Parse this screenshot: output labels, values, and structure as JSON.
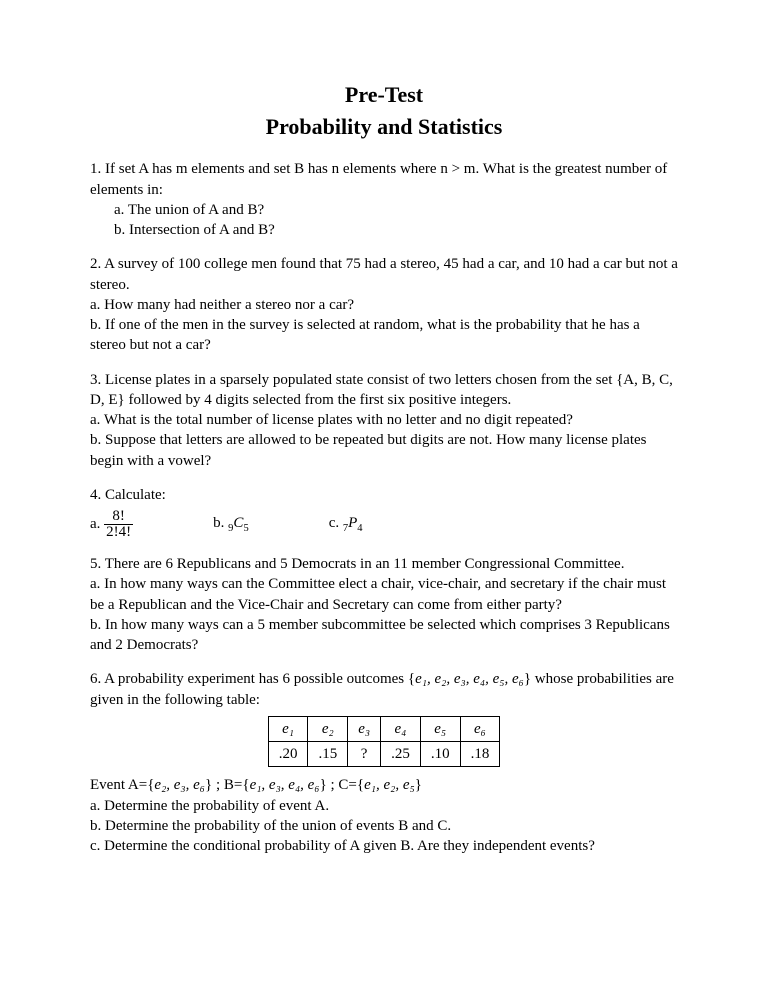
{
  "title": "Pre-Test",
  "subtitle": "Probability and Statistics",
  "q1": {
    "stem": "1. If set A has m elements and set B has n elements where n > m. What is the greatest number of elements in:",
    "a": "a.   The union of A and B?",
    "b": "b.   Intersection of A and B?"
  },
  "q2": {
    "stem": "2. A survey of 100 college men found that 75 had a stereo, 45 had a car, and 10 had a car but not a stereo.",
    "a": "a. How many had neither a stereo nor a car?",
    "b": "b. If one of the men in the survey is selected at random, what is the probability that he has a stereo but not a car?"
  },
  "q3": {
    "stem": "3. License plates in a sparsely populated state consist of two letters chosen from the set  {A, B, C, D, E} followed by 4 digits selected from the first six positive integers.",
    "a": "a. What is the total number of license plates with no letter and no digit repeated?",
    "b": "b. Suppose that letters are allowed to be repeated but digits are not. How many license plates begin with a vowel?"
  },
  "q4": {
    "stem": "4. Calculate:",
    "a_label": "a.",
    "frac_num": "8!",
    "frac_den": "2!4!",
    "b": "b.  ",
    "b_expr_pre": "9",
    "b_expr_mid": "C",
    "b_expr_post": "5",
    "c": "c.  ",
    "c_expr_pre": "7",
    "c_expr_mid": "P",
    "c_expr_post": "4"
  },
  "q5": {
    "stem": "5. There are 6 Republicans and 5 Democrats in an 11 member Congressional Committee.",
    "a": "a. In how many ways can the Committee elect a chair, vice-chair, and secretary if the chair must be a Republican and the Vice-Chair and Secretary can come from either party?",
    "b": "b. In how many ways can a 5 member subcommittee be selected which comprises 3 Republicans and 2 Democrats?"
  },
  "q6": {
    "stem_pre": "6. A probability experiment has 6 possible outcomes {",
    "outcomes": "e₁, e₂, e₃, e₄, e₅, e₆",
    "stem_post": "} whose probabilities are given in the following table:",
    "table": {
      "headers": [
        "e₁",
        "e₂",
        "e₃",
        "e₄",
        "e₅",
        "e₆"
      ],
      "values": [
        ".20",
        ".15",
        "?",
        ".25",
        ".10",
        ".18"
      ]
    },
    "events_pre": "Event A={",
    "eventA": "e₂, e₃, e₆",
    "mid1": "} ; B={",
    "eventB": "e₁, e₃, e₄, e₆",
    "mid2": "} ; C={",
    "eventC": "e₁, e₂, e₅",
    "events_post": "}",
    "a": "a.   Determine the probability of event A.",
    "b": "b.   Determine the probability of the union of events B and C.",
    "c": "c.   Determine the conditional probability of A given B. Are they independent events?"
  }
}
